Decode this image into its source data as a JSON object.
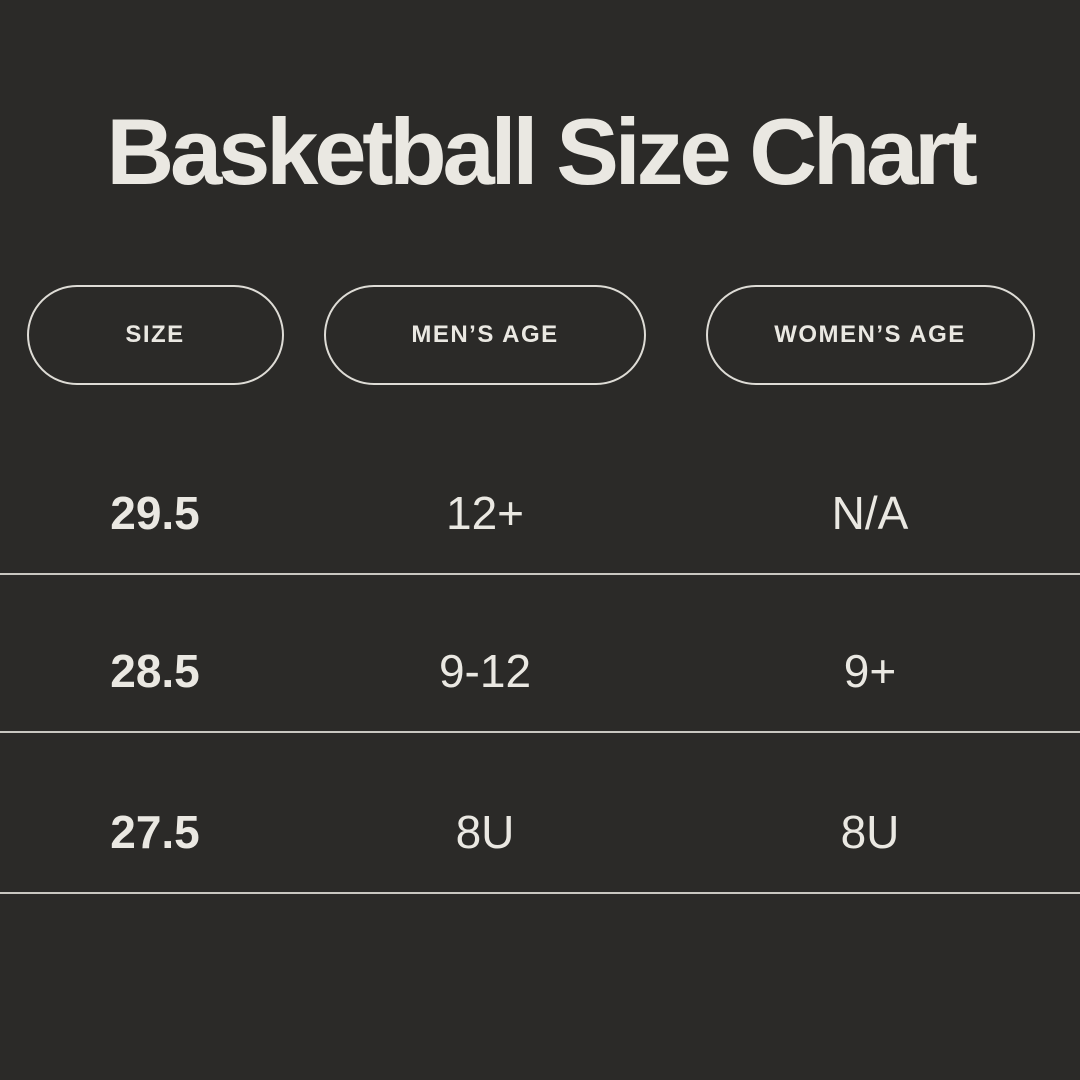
{
  "colors": {
    "background": "#2b2a28",
    "text": "#eae8e2",
    "pill_border": "#dedcd6",
    "divider": "#c9c7c1"
  },
  "chart_data": {
    "type": "table",
    "title": "Basketball Size Chart",
    "columns": [
      "SIZE",
      "MEN’S AGE",
      "WOMEN’S AGE"
    ],
    "rows": [
      [
        "29.5",
        "12+",
        "N/A"
      ],
      [
        "28.5",
        "9-12",
        "9+"
      ],
      [
        "27.5",
        "8U",
        "8U"
      ]
    ]
  }
}
